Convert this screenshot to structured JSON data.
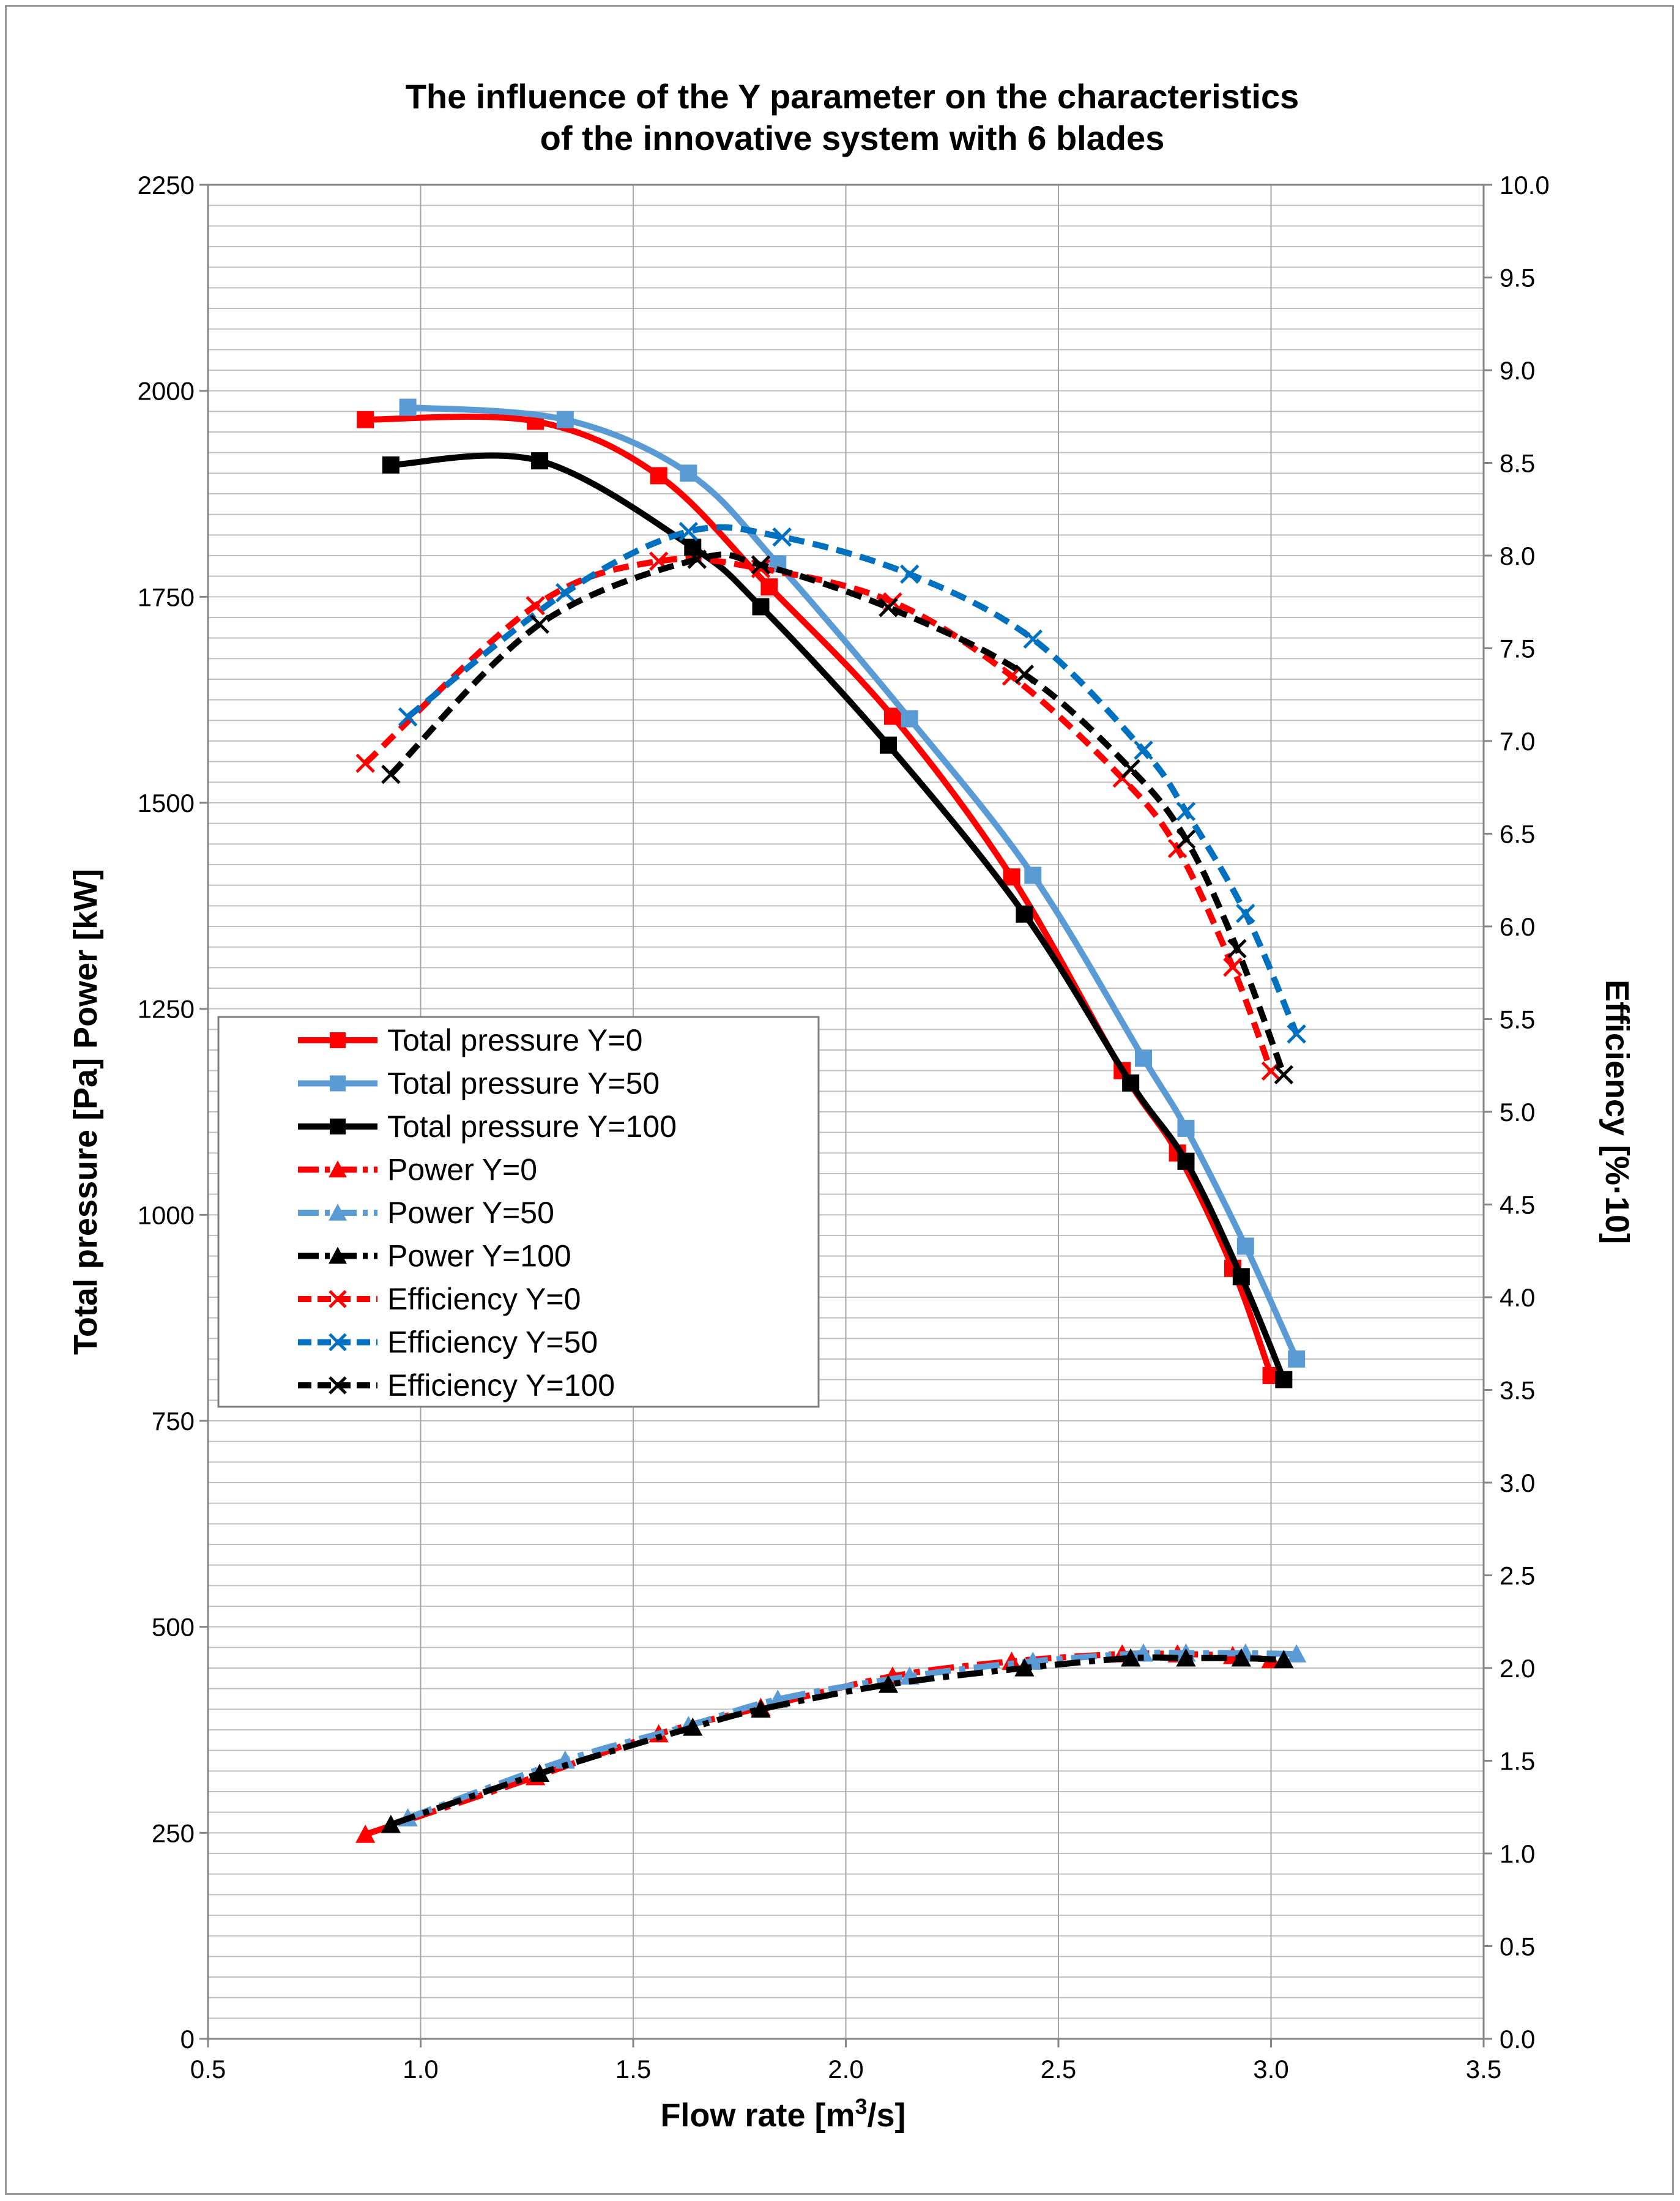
{
  "chart_data": {
    "type": "line",
    "title": [
      "The influence of the Y parameter on the characteristics",
      "of the innovative system with 6 blades"
    ],
    "xlabel": {
      "main": "Flow rate  [m",
      "sup": "3",
      "end": "/s]"
    },
    "ylabel_left": "Total pressure [Pa] Power [kW]",
    "ylabel_right": "Efficiency [%·10]",
    "xlim": [
      0.5,
      3.5
    ],
    "ylim_left": [
      0,
      2250
    ],
    "ylim_right": [
      0,
      10
    ],
    "x_ticks": [
      "0.5",
      "1.0",
      "1.5",
      "2.0",
      "2.5",
      "3.0",
      "3.5"
    ],
    "y_left_ticks": [
      "0",
      "250",
      "500",
      "750",
      "1000",
      "1250",
      "1500",
      "1750",
      "2000",
      "2250"
    ],
    "y_right_ticks": [
      "0.0",
      "0.5",
      "1.0",
      "1.5",
      "2.0",
      "2.5",
      "3.0",
      "3.5",
      "4.0",
      "4.5",
      "5.0",
      "5.5",
      "6.0",
      "6.5",
      "7.0",
      "7.5",
      "8.0",
      "8.5",
      "9.0",
      "9.5",
      "10.0"
    ],
    "grid": true,
    "legend_position": "center-left",
    "series": [
      {
        "name": "Total pressure Y=0",
        "axis": "left",
        "color": "#ff0000",
        "marker": "square",
        "dash": "solid",
        "x": [
          0.87,
          1.27,
          1.56,
          1.82,
          2.11,
          2.39,
          2.65,
          2.78,
          2.91,
          3.0
        ],
        "y": [
          1965,
          1963,
          1897,
          1762,
          1605,
          1410,
          1175,
          1075,
          935,
          805
        ]
      },
      {
        "name": "Total pressure Y=50",
        "axis": "left",
        "color": "#5b9bd5",
        "marker": "square",
        "dash": "solid",
        "x": [
          0.97,
          1.34,
          1.63,
          1.84,
          2.15,
          2.44,
          2.7,
          2.8,
          2.94,
          3.06
        ],
        "y": [
          1980,
          1965,
          1900,
          1790,
          1602,
          1412,
          1190,
          1105,
          962,
          825
        ]
      },
      {
        "name": "Total pressure Y=100",
        "axis": "left",
        "color": "#000000",
        "marker": "square",
        "dash": "solid",
        "x": [
          0.93,
          1.28,
          1.64,
          1.8,
          2.1,
          2.42,
          2.67,
          2.8,
          2.93,
          3.03
        ],
        "y": [
          1910,
          1915,
          1810,
          1738,
          1570,
          1365,
          1160,
          1065,
          925,
          800
        ]
      },
      {
        "name": "Power Y=0",
        "axis": "left",
        "color": "#ff0000",
        "marker": "triangle",
        "dash": "dashdot",
        "x": [
          0.87,
          1.27,
          1.56,
          1.8,
          2.11,
          2.39,
          2.65,
          2.78,
          2.91,
          3.0
        ],
        "y": [
          248,
          318,
          370,
          402,
          440,
          458,
          467,
          467,
          465,
          460
        ]
      },
      {
        "name": "Power Y=50",
        "axis": "left",
        "color": "#5b9bd5",
        "marker": "triangle",
        "dash": "dashdot",
        "x": [
          0.97,
          1.34,
          1.63,
          1.84,
          2.15,
          2.44,
          2.7,
          2.8,
          2.94,
          3.06
        ],
        "y": [
          268,
          338,
          380,
          412,
          440,
          458,
          468,
          468,
          468,
          467
        ]
      },
      {
        "name": "Power Y=100",
        "axis": "left",
        "color": "#000000",
        "marker": "triangle",
        "dash": "dashdot",
        "x": [
          0.93,
          1.28,
          1.64,
          1.8,
          2.1,
          2.42,
          2.67,
          2.8,
          2.93,
          3.03
        ],
        "y": [
          260,
          322,
          378,
          400,
          430,
          450,
          462,
          462,
          462,
          460
        ]
      },
      {
        "name": "Efficiency Y=0",
        "axis": "right",
        "color": "#ff0000",
        "marker": "x",
        "dash": "dashed",
        "x": [
          0.87,
          1.27,
          1.56,
          1.8,
          2.11,
          2.39,
          2.65,
          2.78,
          2.91,
          3.0
        ],
        "y": [
          6.88,
          7.73,
          7.97,
          7.93,
          7.75,
          7.35,
          6.8,
          6.42,
          5.78,
          5.22
        ]
      },
      {
        "name": "Efficiency Y=50",
        "axis": "right",
        "color": "#0070c0",
        "marker": "x",
        "dash": "dashed",
        "x": [
          0.97,
          1.34,
          1.63,
          1.85,
          2.15,
          2.44,
          2.7,
          2.8,
          2.94,
          3.06
        ],
        "y": [
          7.13,
          7.8,
          8.13,
          8.1,
          7.9,
          7.55,
          6.95,
          6.62,
          6.07,
          5.42
        ]
      },
      {
        "name": "Efficiency Y=100",
        "axis": "right",
        "color": "#000000",
        "marker": "x",
        "dash": "dashed",
        "x": [
          0.93,
          1.28,
          1.65,
          1.8,
          2.1,
          2.42,
          2.67,
          2.8,
          2.92,
          3.03
        ],
        "y": [
          6.82,
          7.63,
          7.98,
          7.95,
          7.72,
          7.36,
          6.85,
          6.47,
          5.88,
          5.2
        ]
      }
    ]
  }
}
